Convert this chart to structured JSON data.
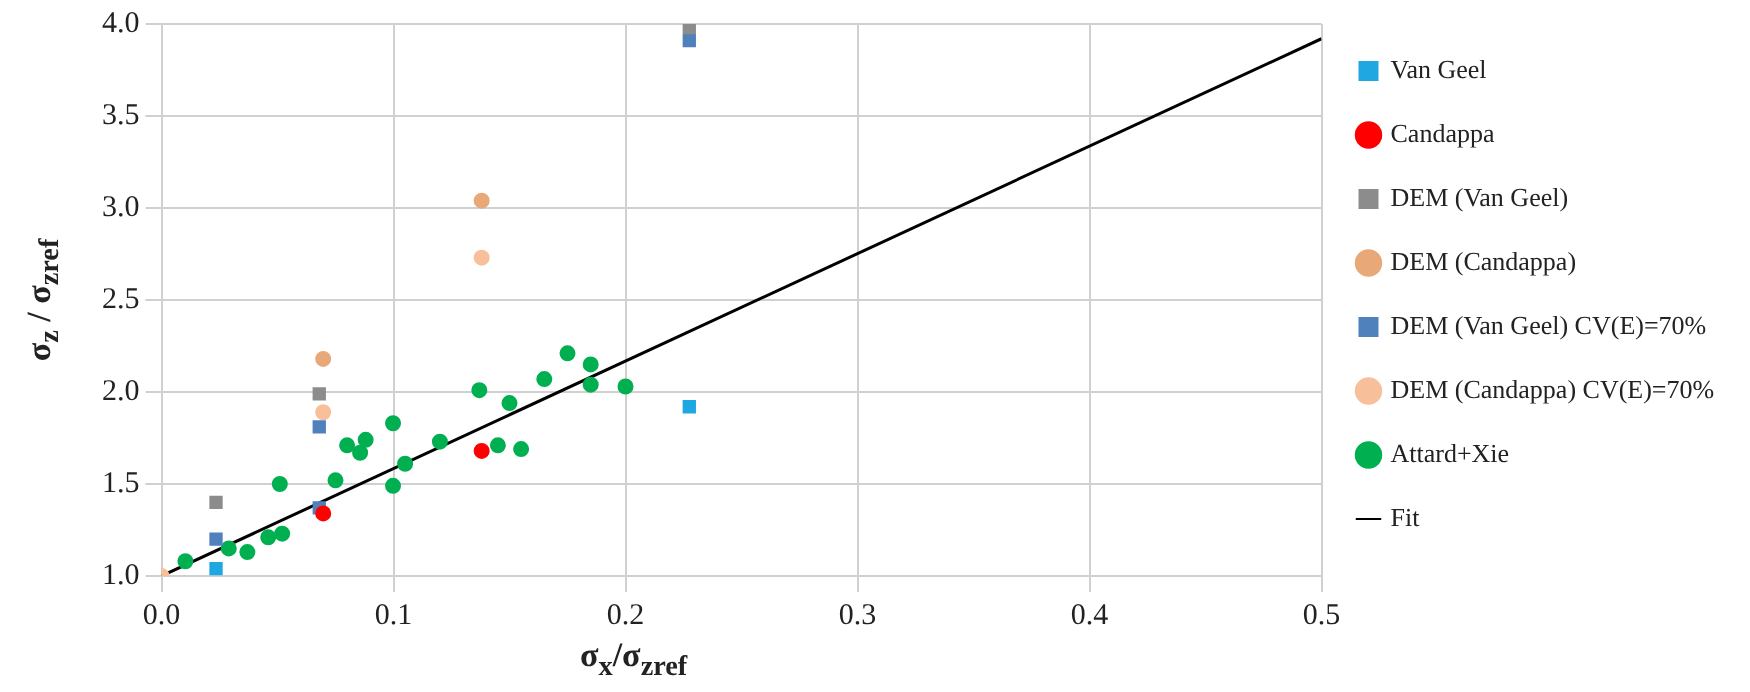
{
  "chart_data": {
    "type": "scatter",
    "xlabel": "σ$_{x}$/σ$_{zref}$",
    "ylabel": "σ$_{z}$ / σ$_{zref}$",
    "xlim": [
      0,
      0.5
    ],
    "xticks": [
      {
        "value": 0,
        "label": "0.0"
      },
      {
        "value": 0.1,
        "label": "0.1"
      },
      {
        "value": 0.2,
        "label": "0.2"
      },
      {
        "value": 0.3,
        "label": "0.3"
      },
      {
        "value": 0.4,
        "label": "0.4"
      },
      {
        "value": 0.5,
        "label": "0.5"
      }
    ],
    "ylim": [
      1,
      4
    ],
    "yticks": [
      {
        "value": 1,
        "label": "1.0"
      },
      {
        "value": 1.5,
        "label": "1.5"
      },
      {
        "value": 2,
        "label": "2.0"
      },
      {
        "value": 2.5,
        "label": "2.5"
      },
      {
        "value": 3,
        "label": "3.0"
      },
      {
        "value": 3.5,
        "label": "3.5"
      },
      {
        "value": 4,
        "label": "4.0"
      }
    ],
    "grid": true,
    "legend": "right",
    "series": [
      {
        "name": "Van Geel",
        "color": "#1ea7e1",
        "marker": "square",
        "x": [
          0.0235,
          0.2275
        ],
        "values": [
          1.04,
          1.92
        ]
      },
      {
        "name": "Candappa",
        "color": "#ff0000",
        "marker": "circle",
        "x": [
          0.0697,
          0.138
        ],
        "values": [
          1.34,
          1.68
        ]
      },
      {
        "name": "DEM (Van Geel)",
        "color": "#8c8c8c",
        "marker": "square",
        "x": [
          0.0235,
          0.068,
          0.2275
        ],
        "values": [
          1.4,
          1.99,
          3.98
        ]
      },
      {
        "name": "DEM (Candappa)",
        "color": "#e8a878",
        "marker": "circle",
        "x": [
          0.0697,
          0.138
        ],
        "values": [
          2.18,
          3.04
        ]
      },
      {
        "name": "DEM (Van Geel) CV(E)=70%",
        "color": "#4f81bd",
        "marker": "square",
        "x": [
          0.0235,
          0.068,
          0.068,
          0.2275
        ],
        "values": [
          1.2,
          1.37,
          1.81,
          3.91
        ]
      },
      {
        "name": "DEM (Candappa) CV(E)=70%",
        "color": "#f8c09a",
        "marker": "circle",
        "x": [
          0,
          0.0697,
          0.138
        ],
        "values": [
          1.0,
          1.89,
          2.73
        ]
      },
      {
        "name": "Attard+Xie",
        "color": "#00b050",
        "marker": "circle",
        "x": [
          0.0103,
          0.029,
          0.037,
          0.046,
          0.052,
          0.051,
          0.075,
          0.08,
          0.0856,
          0.088,
          0.0998,
          0.0998,
          0.105,
          0.12,
          0.137,
          0.15,
          0.145,
          0.155,
          0.165,
          0.175,
          0.185,
          0.185,
          0.2
        ],
        "values": [
          1.08,
          1.15,
          1.13,
          1.21,
          1.23,
          1.5,
          1.52,
          1.71,
          1.67,
          1.74,
          1.83,
          1.49,
          1.61,
          1.73,
          2.01,
          1.94,
          1.71,
          1.69,
          2.07,
          2.21,
          2.15,
          2.04,
          2.03
        ]
      },
      {
        "name": "Fit",
        "type": "line",
        "color": "#000000",
        "marker": "none",
        "x": [
          0,
          0.5
        ],
        "values": [
          1,
          3.92
        ]
      }
    ]
  }
}
